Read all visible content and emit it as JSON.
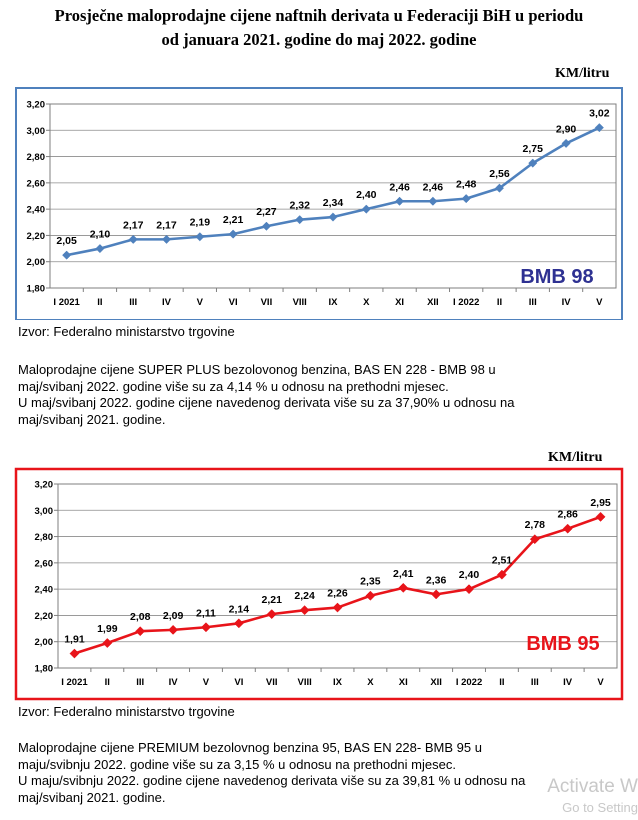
{
  "title": {
    "line1": "Prosječne maloprodajne cijene naftnih derivata u Federaciji BiH u periodu",
    "line2": "od januara 2021. godine do maj 2022. godine"
  },
  "chart_data": [
    {
      "type": "line",
      "name": "BMB 98",
      "unit_label": "KM/litru",
      "categories": [
        "I 2021",
        "II",
        "III",
        "IV",
        "V",
        "VI",
        "VII",
        "VIII",
        "IX",
        "X",
        "XI",
        "XII",
        "I 2022",
        "II",
        "III",
        "IV",
        "V"
      ],
      "values": [
        2.05,
        2.1,
        2.17,
        2.17,
        2.19,
        2.21,
        2.27,
        2.32,
        2.34,
        2.4,
        2.46,
        2.46,
        2.48,
        2.56,
        2.75,
        2.9,
        3.02
      ],
      "value_labels": [
        "2,05",
        "2,10",
        "2,17",
        "2,17",
        "2,19",
        "2,21",
        "2,27",
        "2,32",
        "2,34",
        "2,40",
        "2,46",
        "2,46",
        "2,48",
        "2,56",
        "2,75",
        "2,90",
        "3,02"
      ],
      "ylim": [
        1.8,
        3.2
      ],
      "y_ticks": [
        "1,80",
        "2,00",
        "2,20",
        "2,40",
        "2,60",
        "2,80",
        "3,00",
        "3,20"
      ],
      "y_tick_values": [
        1.8,
        2.0,
        2.2,
        2.4,
        2.6,
        2.8,
        3.0,
        3.2
      ],
      "color": "#4f81bd",
      "frame_color": "#4f81bd",
      "label_color": "#2e3192",
      "grid": true
    },
    {
      "type": "line",
      "name": "BMB 95",
      "unit_label": "KM/litru",
      "categories": [
        "I 2021",
        "II",
        "III",
        "IV",
        "V",
        "VI",
        "VII",
        "VIII",
        "IX",
        "X",
        "XI",
        "XII",
        "I 2022",
        "II",
        "III",
        "IV",
        "V"
      ],
      "values": [
        1.91,
        1.99,
        2.08,
        2.09,
        2.11,
        2.14,
        2.21,
        2.24,
        2.26,
        2.35,
        2.41,
        2.36,
        2.4,
        2.51,
        2.78,
        2.86,
        2.95
      ],
      "value_labels": [
        "1,91",
        "1,99",
        "2,08",
        "2,09",
        "2,11",
        "2,14",
        "2,21",
        "2,24",
        "2,26",
        "2,35",
        "2,41",
        "2,36",
        "2,40",
        "2,51",
        "2,78",
        "2,86",
        "2,95"
      ],
      "ylim": [
        1.8,
        3.2
      ],
      "y_ticks": [
        "1,80",
        "2,00",
        "2,20",
        "2,40",
        "2,60",
        "2,80",
        "3,00",
        "3,20"
      ],
      "y_tick_values": [
        1.8,
        2.0,
        2.2,
        2.4,
        2.6,
        2.8,
        3.0,
        3.2
      ],
      "color": "#e8141a",
      "frame_color": "#e8141a",
      "label_color": "#e8141a",
      "grid": true
    }
  ],
  "source1": "Izvor: Federalno ministarstvo trgovine",
  "para1": {
    "l1": "Maloprodajne cijene SUPER PLUS bezolovonog benzina, BAS EN 228 - BMB 98 u",
    "l2": "maj/svibanj 2022. godine više su za 4,14 % u odnosu na prethodni mjesec.",
    "l3": "U maj/svibanj 2022. godine cijene navedenog derivata više su za 37,90% u odnosu na",
    "l4": "maj/svibanj 2021. godine."
  },
  "source2": "Izvor: Federalno ministarstvo trgovine",
  "para2": {
    "l1": "Maloprodajne cijene PREMIUM bezolovnog benzina 95, BAS EN 228- BMB 95 u",
    "l2": "maju/svibnju 2022. godine više su za 3,15 % u odnosu na prethodni mjesec.",
    "l3": "U maju/svibnju 2022. godine cijene navedenog derivata više su za 39,81 % u odnosu na",
    "l4": "maj/svibanj 2021. godine."
  },
  "watermark": {
    "line1": "Activate W",
    "line2": "Go to Setting"
  }
}
